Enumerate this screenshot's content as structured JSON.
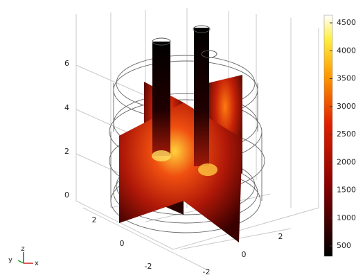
{
  "colorbar": {
    "ticks": [
      500,
      1000,
      1500,
      2000,
      2500,
      3000,
      3500,
      4000,
      4500
    ]
  },
  "axes": {
    "z_ticks": [
      0,
      2,
      4,
      6
    ],
    "y_ticks": [
      2,
      0,
      -2
    ],
    "x_ticks": [
      -2,
      0,
      2
    ]
  },
  "triad": {
    "labels": [
      "y",
      "z",
      "x"
    ]
  }
}
